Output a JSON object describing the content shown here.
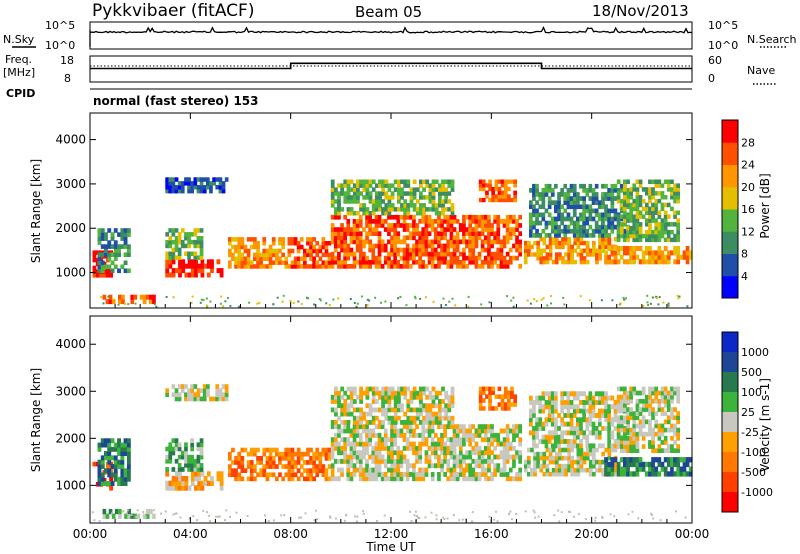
{
  "header": {
    "station": "Pykkvibaer (fitACF)",
    "beam": "Beam 05",
    "date": "18/Nov/2013"
  },
  "panel_labels": {
    "nsky": "N.Sky",
    "nsearch": "N.Search",
    "freq": "Freq.",
    "freq_unit": "[MHz]",
    "cpid": "CPID",
    "nave": "Nave",
    "cpid_name": "normal (fast stereo) 153"
  },
  "noise_axis": {
    "top": "10^5",
    "bottom": "10^0"
  },
  "freq_axis": {
    "top": "18",
    "bottom": "8"
  },
  "nave_axis": {
    "top": "60",
    "bottom": "0"
  },
  "colors": {
    "power": [
      "#0000ff",
      "#1f4fa8",
      "#3c8c64",
      "#52b43c",
      "#e6be00",
      "#ff9600",
      "#ff5000",
      "#ff0000"
    ],
    "velocity": [
      "#0a28c8",
      "#1e4696",
      "#287850",
      "#3cb43c",
      "#c8c8c0",
      "#ffa000",
      "#ff7800",
      "#ff4000",
      "#ff0000"
    ],
    "ground": "#c0c0b0"
  },
  "chart_data": [
    {
      "type": "heatmap",
      "title": "",
      "xlabel": "Time UT",
      "ylabel": "Slant Range [km]",
      "x_ticks": [
        "00:00",
        "04:00",
        "08:00",
        "12:00",
        "16:00",
        "20:00",
        "00:00"
      ],
      "y_ticks": [
        "1000",
        "2000",
        "3000",
        "4000"
      ],
      "xlim": [
        0,
        24
      ],
      "ylim": [
        200,
        4600
      ],
      "colorbar": {
        "label": "Power [dB]",
        "ticks": [
          "4",
          "8",
          "12",
          "16",
          "20",
          "24",
          "28"
        ],
        "range": [
          0,
          30
        ]
      }
    },
    {
      "type": "heatmap",
      "title": "",
      "xlabel": "Time UT",
      "ylabel": "Slant Range [km]",
      "x_ticks": [
        "00:00",
        "04:00",
        "08:00",
        "12:00",
        "16:00",
        "20:00",
        "00:00"
      ],
      "y_ticks": [
        "1000",
        "2000",
        "3000",
        "4000"
      ],
      "xlim": [
        0,
        24
      ],
      "ylim": [
        200,
        4600
      ],
      "colorbar": {
        "label": "Velocity [m s-1]",
        "ticks": [
          "1000",
          "500",
          "100",
          "25",
          "-25",
          "-100",
          "-500",
          "-1000"
        ]
      }
    },
    {
      "type": "line",
      "title": "",
      "series": [
        {
          "values": [
            [
              "00:00",
              "13.2"
            ],
            [
              "08:00",
              "13.2"
            ],
            [
              "08:00",
              "15.2"
            ],
            [
              "18:00",
              "15.2"
            ],
            [
              "18:00",
              "13.2"
            ],
            [
              "24:00",
              "13.2"
            ]
          ]
        }
      ]
    }
  ],
  "time_axis": {
    "ticks": [
      "00:00",
      "04:00",
      "08:00",
      "12:00",
      "16:00",
      "20:00",
      "00:00"
    ],
    "label": "Time UT"
  }
}
